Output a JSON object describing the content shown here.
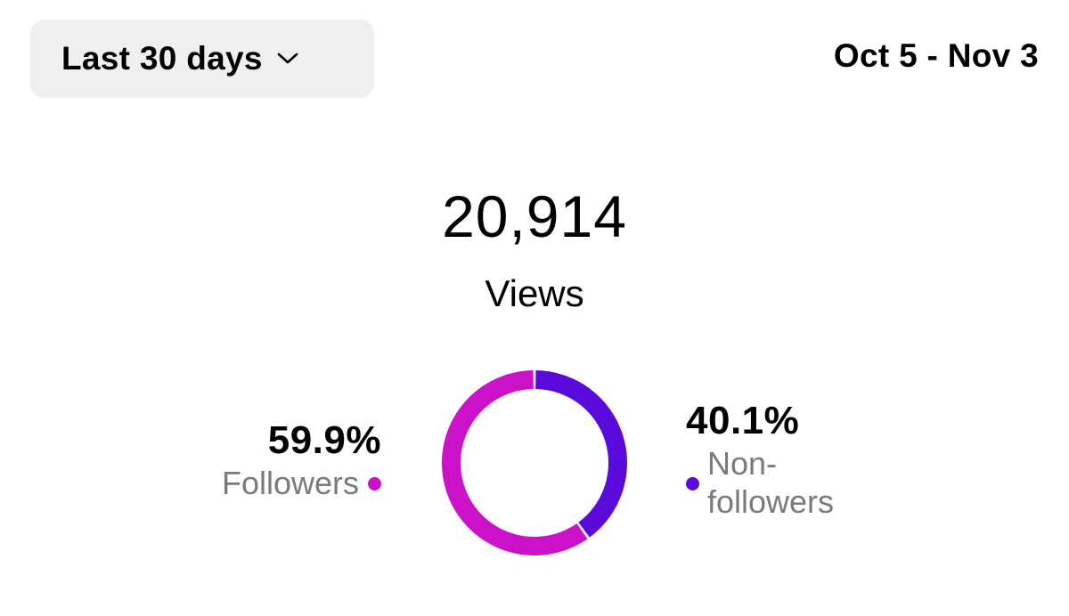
{
  "header": {
    "range_label": "Last 30 days",
    "range_icon": "chevron-down-icon",
    "date_range": "Oct 5 - Nov 3"
  },
  "summary": {
    "total_value": "20,914",
    "total_label": "Views"
  },
  "chart_data": {
    "type": "pie",
    "categories": [
      "Followers",
      "Non-followers"
    ],
    "values": [
      59.9,
      40.1
    ],
    "value_labels": [
      "59.9%",
      "40.1%"
    ],
    "colors": [
      "#cc12c9",
      "#5a0adb"
    ],
    "title": "",
    "legend": "beside chart"
  }
}
